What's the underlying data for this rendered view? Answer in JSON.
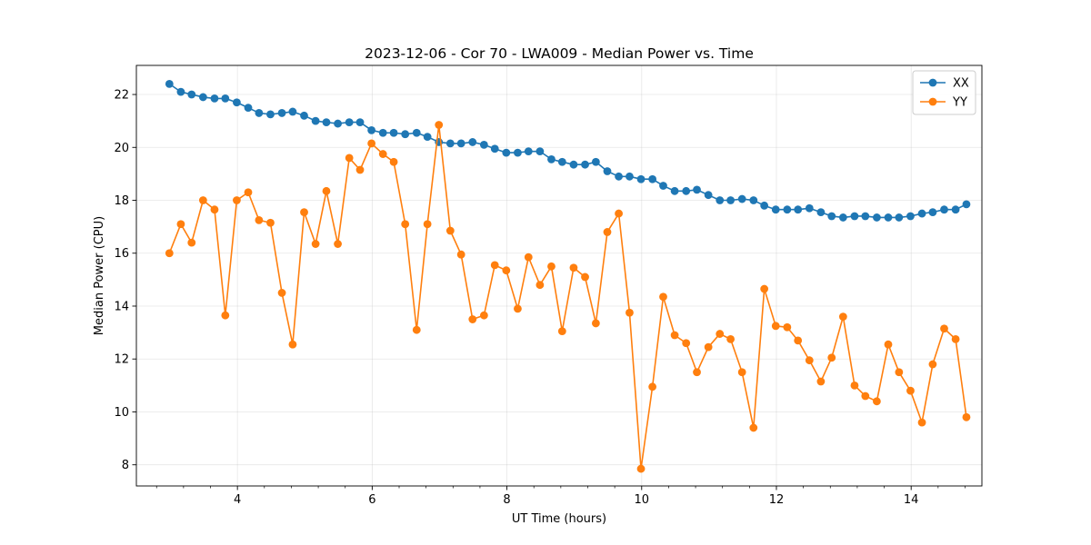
{
  "chart_data": {
    "type": "line",
    "title": "2023-12-06 - Cor 70 - LWA009 - Median Power vs. Time",
    "xlabel": "UT Time (hours)",
    "ylabel": "Median Power (CPU)",
    "xlim": [
      2.5,
      15.05
    ],
    "ylim": [
      7.2,
      23.1
    ],
    "xticks": [
      4,
      6,
      8,
      10,
      12,
      14
    ],
    "yticks": [
      8,
      10,
      12,
      14,
      16,
      18,
      20,
      22
    ],
    "grid": true,
    "legend": "top-right",
    "x": [
      2.99,
      3.16,
      3.32,
      3.49,
      3.66,
      3.82,
      3.99,
      4.16,
      4.32,
      4.49,
      4.66,
      4.82,
      4.99,
      5.16,
      5.32,
      5.49,
      5.66,
      5.82,
      5.99,
      6.16,
      6.32,
      6.49,
      6.66,
      6.82,
      6.99,
      7.16,
      7.32,
      7.49,
      7.66,
      7.82,
      7.99,
      8.16,
      8.32,
      8.49,
      8.66,
      8.82,
      8.99,
      9.16,
      9.32,
      9.49,
      9.66,
      9.82,
      9.99,
      10.16,
      10.32,
      10.49,
      10.66,
      10.82,
      10.99,
      11.16,
      11.32,
      11.49,
      11.66,
      11.82,
      11.99,
      12.16,
      12.32,
      12.49,
      12.66,
      12.82,
      12.99,
      13.16,
      13.32,
      13.49,
      13.66,
      13.82,
      13.99,
      14.16,
      14.32,
      14.49,
      14.66,
      14.82
    ],
    "series": [
      {
        "name": "XX",
        "color": "#1f77b4",
        "values": [
          22.4,
          22.1,
          22.0,
          21.9,
          21.85,
          21.85,
          21.7,
          21.5,
          21.3,
          21.25,
          21.3,
          21.35,
          21.2,
          21.0,
          20.95,
          20.9,
          20.95,
          20.95,
          20.65,
          20.55,
          20.55,
          20.5,
          20.55,
          20.4,
          20.2,
          20.15,
          20.15,
          20.2,
          20.1,
          19.95,
          19.8,
          19.8,
          19.85,
          19.85,
          19.55,
          19.45,
          19.35,
          19.35,
          19.45,
          19.1,
          18.9,
          18.9,
          18.8,
          18.8,
          18.55,
          18.35,
          18.35,
          18.4,
          18.2,
          18.0,
          18.0,
          18.05,
          18.0,
          17.8,
          17.65,
          17.65,
          17.65,
          17.7,
          17.55,
          17.4,
          17.35,
          17.4,
          17.4,
          17.35,
          17.35,
          17.35,
          17.4,
          17.5,
          17.55,
          17.65,
          17.65,
          17.85
        ]
      },
      {
        "name": "YY",
        "color": "#ff7f0e",
        "values": [
          16.0,
          17.1,
          16.4,
          18.0,
          17.65,
          13.65,
          18.0,
          18.3,
          17.25,
          17.15,
          14.5,
          12.55,
          17.55,
          16.35,
          18.35,
          16.35,
          19.6,
          19.15,
          20.15,
          19.75,
          19.45,
          17.1,
          13.1,
          17.1,
          20.85,
          16.85,
          15.95,
          13.5,
          13.65,
          15.55,
          15.35,
          13.9,
          15.85,
          14.8,
          15.5,
          13.05,
          15.45,
          15.1,
          13.35,
          16.8,
          17.5,
          13.75,
          7.85,
          10.95,
          14.35,
          12.9,
          12.6,
          11.5,
          12.45,
          12.95,
          12.75,
          11.5,
          9.4,
          14.65,
          13.25,
          13.2,
          12.7,
          11.95,
          11.15,
          12.05,
          13.6,
          11.0,
          10.6,
          10.4,
          12.55,
          11.5,
          10.8,
          9.6,
          11.8,
          13.15,
          12.75,
          9.8
        ]
      }
    ]
  }
}
